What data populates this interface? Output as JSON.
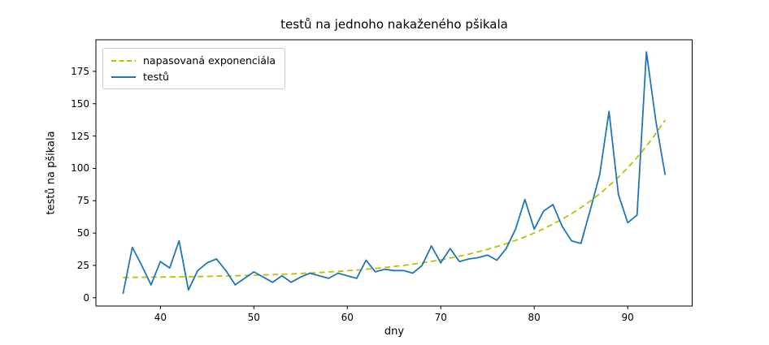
{
  "chart_data": {
    "type": "line",
    "title": "testů na jednoho nakaženého pšikala",
    "xlabel": "dny",
    "ylabel": "testů na pšikala",
    "legend_position": "upper left",
    "grid": false,
    "xlim": [
      33.1,
      96.9
    ],
    "ylim": [
      -6.4,
      199.4
    ],
    "x_ticks": [
      40,
      50,
      60,
      70,
      80,
      90
    ],
    "y_ticks": [
      0,
      25,
      50,
      75,
      100,
      125,
      150,
      175
    ],
    "x": [
      36,
      37,
      38,
      39,
      40,
      41,
      42,
      43,
      44,
      45,
      46,
      47,
      48,
      49,
      50,
      51,
      52,
      53,
      54,
      55,
      56,
      57,
      58,
      59,
      60,
      61,
      62,
      63,
      64,
      65,
      66,
      67,
      68,
      69,
      70,
      71,
      72,
      73,
      74,
      75,
      76,
      77,
      78,
      79,
      80,
      81,
      82,
      83,
      84,
      85,
      86,
      87,
      88,
      89,
      90,
      91,
      92,
      93,
      94
    ],
    "series": [
      {
        "name": "napasovaná exponenciála",
        "style": "dashed",
        "color": "#bfbf00",
        "values": [
          15.7,
          15.8,
          15.9,
          15.9,
          16.0,
          16.1,
          16.2,
          16.3,
          16.4,
          16.5,
          16.7,
          16.8,
          17.0,
          17.2,
          17.4,
          17.6,
          17.9,
          18.2,
          18.4,
          18.8,
          19.1,
          19.5,
          19.9,
          20.4,
          20.9,
          21.4,
          22.0,
          22.7,
          23.4,
          24.2,
          25.0,
          26.0,
          27.0,
          28.1,
          29.3,
          30.7,
          32.2,
          33.7,
          35.5,
          37.4,
          39.5,
          41.8,
          44.3,
          47.0,
          50.0,
          53.3,
          56.9,
          60.8,
          65.0,
          69.7,
          74.8,
          80.4,
          86.5,
          93.2,
          100.5,
          108.4,
          117.2,
          126.8,
          137.3
        ]
      },
      {
        "name": "testů",
        "style": "solid",
        "color": "#1f77b4",
        "values": [
          3,
          39,
          25,
          10,
          28,
          23,
          44,
          6,
          21,
          27,
          30,
          21,
          10,
          15,
          20,
          16,
          12,
          17,
          12,
          16,
          19,
          17,
          15,
          19,
          17,
          15,
          29,
          20,
          22,
          21,
          21,
          19,
          25,
          40,
          27,
          38,
          28,
          30,
          31,
          33,
          29,
          38,
          53,
          76,
          53,
          67,
          72,
          55,
          44,
          42,
          68,
          95,
          144,
          80,
          58,
          64,
          190,
          137,
          95
        ]
      }
    ]
  }
}
